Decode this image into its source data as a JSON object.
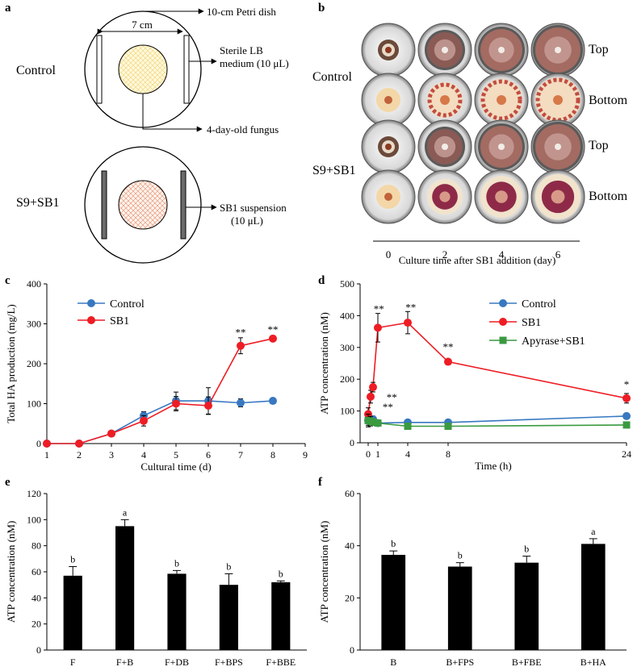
{
  "figure": {
    "a": {
      "label": "a",
      "dish_width": "7 cm",
      "callout_dish": "10-cm Petri dish",
      "callout_lb_1": "Sterile LB",
      "callout_lb_2": "medium (10 μL)",
      "callout_fungus": "4-day-old fungus",
      "callout_sb1_1": "SB1 suspension",
      "callout_sb1_2": "(10 μL)",
      "row_control": "Control",
      "row_s9sb1": "S9+SB1"
    },
    "b": {
      "label": "b",
      "row_control": "Control",
      "row_s9sb1": "S9+SB1",
      "side_top": "Top",
      "side_bottom": "Bottom",
      "days": [
        "0",
        "2",
        "4",
        "6"
      ],
      "xlabel": "Culture time after SB1 addition (day)"
    },
    "colors": {
      "control": "#3878c0",
      "sb1": "#ee1c24",
      "apyrase": "#3a9a40",
      "bar": "#000000"
    }
  },
  "chart_data": [
    {
      "panel": "c",
      "type": "line",
      "ylabel": "Total HA production (mg/L)",
      "xlabel": "Cultural time (d)",
      "xlim": [
        1,
        9
      ],
      "ylim": [
        0,
        400
      ],
      "xticks": [
        1,
        2,
        3,
        4,
        5,
        6,
        7,
        8,
        9
      ],
      "yticks": [
        0,
        100,
        200,
        300,
        400
      ],
      "series": [
        {
          "name": "Control",
          "x": [
            1,
            2,
            3,
            4,
            5,
            6,
            7,
            8
          ],
          "y": [
            0,
            0,
            25,
            70,
            107,
            107,
            102,
            107
          ],
          "err": [
            0,
            0,
            4,
            10,
            22,
            33,
            10,
            7
          ]
        },
        {
          "name": "SB1",
          "x": [
            1,
            2,
            3,
            4,
            5,
            6,
            7,
            8
          ],
          "y": [
            0,
            0,
            25,
            57,
            100,
            95,
            245,
            263
          ],
          "err": [
            0,
            0,
            4,
            13,
            18,
            22,
            20,
            7
          ]
        }
      ],
      "annotations": [
        {
          "x": 7,
          "y": 270,
          "text": "**"
        },
        {
          "x": 8,
          "y": 277,
          "text": "**"
        }
      ]
    },
    {
      "panel": "d",
      "type": "line",
      "ylabel": "ATP concentration (nM)",
      "xlabel": "Time (h)",
      "xlim": [
        0,
        24
      ],
      "ylim": [
        0,
        500
      ],
      "xticks": [
        0,
        1,
        4,
        8,
        24
      ],
      "yticks": [
        0,
        100,
        200,
        300,
        400,
        500
      ],
      "series": [
        {
          "name": "Control",
          "x": [
            0,
            0.25,
            0.5,
            1,
            4,
            8,
            24
          ],
          "y": [
            70,
            72,
            74,
            62,
            64,
            64,
            84
          ],
          "err": [
            15,
            12,
            10,
            8,
            8,
            5,
            8
          ]
        },
        {
          "name": "SB1",
          "x": [
            0,
            0.25,
            0.5,
            1,
            4,
            8,
            24
          ],
          "y": [
            90,
            145,
            175,
            362,
            378,
            255,
            140
          ],
          "err": [
            20,
            20,
            15,
            45,
            35,
            5,
            15
          ]
        },
        {
          "name": "Apyrase+SB1",
          "x": [
            0,
            0.25,
            0.5,
            1,
            4,
            8,
            24
          ],
          "y": [
            70,
            68,
            65,
            62,
            52,
            52,
            56
          ],
          "err": [
            20,
            15,
            10,
            5,
            5,
            3,
            5
          ]
        }
      ],
      "annotations": [
        {
          "x": 1.1,
          "y": 410,
          "text": "**"
        },
        {
          "x": 4.3,
          "y": 415,
          "text": "**"
        },
        {
          "x": 8,
          "y": 290,
          "text": "**"
        },
        {
          "x": 24,
          "y": 172,
          "text": "*"
        },
        {
          "x": 2.4,
          "y": 132,
          "text": "**"
        },
        {
          "x": 2.0,
          "y": 102,
          "text": "**"
        }
      ]
    },
    {
      "panel": "e",
      "type": "bar",
      "ylabel": "ATP concentration (nM)",
      "categories": [
        "F",
        "F+B",
        "F+DB",
        "F+BPS",
        "F+BBE"
      ],
      "values": [
        57,
        95,
        58.5,
        50,
        52
      ],
      "errors": [
        7,
        5,
        2.5,
        8.5,
        1
      ],
      "letters": [
        "b",
        "a",
        "b",
        "b",
        "b"
      ],
      "ylim": [
        0,
        120
      ],
      "yticks": [
        0,
        20,
        40,
        60,
        80,
        100,
        120
      ]
    },
    {
      "panel": "f",
      "type": "bar",
      "ylabel": "ATP concentration (nM)",
      "categories": [
        "B",
        "B+FPS",
        "B+FBE",
        "B+HA"
      ],
      "values": [
        36.5,
        32,
        33.5,
        40.7
      ],
      "errors": [
        1.5,
        1.5,
        2.5,
        2
      ],
      "letters": [
        "b",
        "b",
        "b",
        "a"
      ],
      "ylim": [
        0,
        60
      ],
      "yticks": [
        0,
        20,
        40,
        60
      ]
    }
  ]
}
